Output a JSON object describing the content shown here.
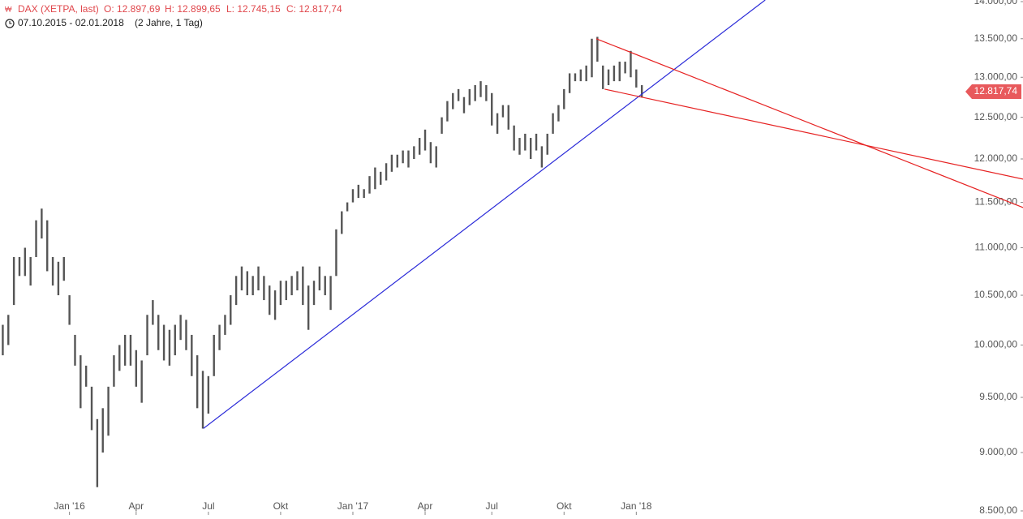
{
  "chart_data": {
    "type": "ohlc",
    "header": {
      "instrument": "DAX (XETPA, last)",
      "open": "O: 12.897,69",
      "high": "H: 12.899,65",
      "low": "L: 12.745,15",
      "close": "C: 12.817,74",
      "range": "07.10.2015 - 02.01.2018",
      "period": "(2 Jahre, 1 Tag)"
    },
    "categories": [
      null,
      null,
      null,
      null,
      null,
      null,
      null,
      null,
      null,
      null,
      null,
      null,
      "Jan '16",
      null,
      null,
      null,
      null,
      null,
      null,
      null,
      null,
      null,
      null,
      null,
      "Apr",
      null,
      null,
      null,
      null,
      null,
      null,
      null,
      null,
      null,
      null,
      null,
      null,
      "Jul",
      null,
      null,
      null,
      null,
      null,
      null,
      null,
      null,
      null,
      null,
      null,
      null,
      "Okt",
      null,
      null,
      null,
      null,
      null,
      null,
      null,
      null,
      null,
      null,
      null,
      null,
      "Jan '17",
      null,
      null,
      null,
      null,
      null,
      null,
      null,
      null,
      null,
      null,
      null,
      null,
      "Apr",
      null,
      null,
      null,
      null,
      null,
      null,
      null,
      null,
      null,
      null,
      null,
      "Jul",
      null,
      null,
      null,
      null,
      null,
      null,
      null,
      null,
      null,
      null,
      null,
      null,
      "Okt",
      null,
      null,
      null,
      null,
      null,
      null,
      null,
      null,
      null,
      null,
      null,
      null,
      "Jan '18",
      null
    ],
    "low": [
      9900,
      10000,
      10400,
      10700,
      10700,
      10600,
      10900,
      11100,
      10750,
      10600,
      10500,
      10650,
      10200,
      9800,
      9400,
      9600,
      9200,
      8700,
      9000,
      9150,
      9600,
      9750,
      9800,
      9800,
      9600,
      9450,
      9900,
      10200,
      9950,
      9850,
      9800,
      9900,
      10050,
      9950,
      9700,
      9400,
      9214,
      9350,
      9700,
      9950,
      10100,
      10200,
      10400,
      10550,
      10500,
      10500,
      10550,
      10450,
      10300,
      10250,
      10400,
      10450,
      10500,
      10550,
      10400,
      10150,
      10400,
      10550,
      10500,
      10350,
      10700,
      11150,
      11400,
      11500,
      11550,
      11550,
      11600,
      11650,
      11700,
      11750,
      11850,
      11900,
      11950,
      11900,
      12000,
      12050,
      12100,
      11950,
      11900,
      12300,
      12450,
      12600,
      12700,
      12550,
      12650,
      12700,
      12750,
      12700,
      12400,
      12300,
      12500,
      12350,
      12100,
      12050,
      12100,
      12000,
      12100,
      11900,
      12050,
      12300,
      12450,
      12600,
      12800,
      12950,
      12950,
      12950,
      13000,
      13200,
      12850,
      12900,
      12950,
      12950,
      13050,
      13000,
      12870,
      12745.15
    ],
    "high": [
      10200,
      10300,
      10900,
      10900,
      11000,
      10900,
      11300,
      11430,
      11300,
      10900,
      10850,
      10900,
      10500,
      10100,
      9900,
      9800,
      9600,
      9300,
      9400,
      9600,
      9900,
      10000,
      10100,
      10100,
      9950,
      9850,
      10300,
      10450,
      10300,
      10200,
      10150,
      10200,
      10300,
      10250,
      10100,
      9900,
      9750,
      9700,
      10100,
      10200,
      10300,
      10500,
      10700,
      10800,
      10750,
      10700,
      10800,
      10700,
      10600,
      10550,
      10650,
      10650,
      10700,
      10750,
      10800,
      10600,
      10650,
      10800,
      10700,
      10700,
      11200,
      11400,
      11500,
      11650,
      11700,
      11650,
      11800,
      11900,
      11850,
      11950,
      12050,
      12050,
      12100,
      12100,
      12150,
      12250,
      12350,
      12200,
      12150,
      12500,
      12700,
      12800,
      12850,
      12750,
      12850,
      12900,
      12950,
      12900,
      12800,
      12550,
      12650,
      12650,
      12400,
      12250,
      12300,
      12250,
      12300,
      12150,
      12300,
      12550,
      12650,
      12850,
      13050,
      13050,
      13100,
      13150,
      13500,
      13525,
      13150,
      13100,
      13150,
      13200,
      13200,
      13340,
      13100,
      12899.65
    ],
    "color": "#555555",
    "last_price": {
      "value": 12817.74,
      "label": "12.817,74",
      "color": "#e8595c"
    },
    "trendlines": [
      {
        "color": "#2a2ad8",
        "x": [
          36.1,
          137.2
        ],
        "y": [
          9215,
          14022
        ]
      },
      {
        "color": "#e62222",
        "x": [
          106.8,
          183.6
        ],
        "y": [
          13500,
          11442
        ]
      },
      {
        "color": "#e62222",
        "x": [
          108.3,
          183.6
        ],
        "y": [
          12849,
          11765
        ]
      }
    ],
    "log_scale": true,
    "ylim": [
      8500,
      14000
    ],
    "yticks": [
      {
        "value": 8500,
        "label": "8.500,00"
      },
      {
        "value": 9000,
        "label": "9.000,00"
      },
      {
        "value": 9500,
        "label": "9.500,00"
      },
      {
        "value": 10000,
        "label": "10.000,00"
      },
      {
        "value": 10500,
        "label": "10.500,00"
      },
      {
        "value": 11000,
        "label": "11.000,00"
      },
      {
        "value": 11500,
        "label": "11.500,00"
      },
      {
        "value": 12000,
        "label": "12.000,00"
      },
      {
        "value": 12500,
        "label": "12.500,00"
      },
      {
        "value": 13000,
        "label": "13.000,00"
      },
      {
        "value": 13500,
        "label": "13.500,00"
      },
      {
        "value": 14000,
        "label": "14.000,00"
      }
    ]
  }
}
